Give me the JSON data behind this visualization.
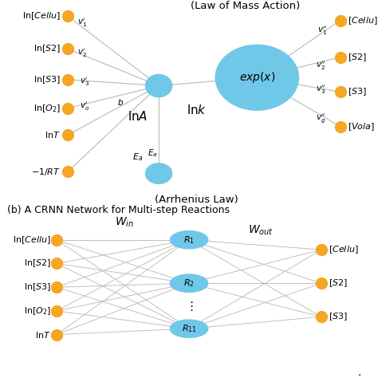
{
  "title_top": "(Law of Mass Action)",
  "title_bottom_a": "(Arrhenius Law)",
  "title_b": "(b) A CRNN Network for Multi-step Reactions",
  "node_color_yellow": "#F5A623",
  "node_color_blue": "#70C8E8",
  "line_color": "#C0C0C0",
  "left_inputs": [
    "ln[$\\it{Cellu}$]",
    "ln[$\\it{S2}$]",
    "ln[$\\it{S3}$]",
    "ln[$\\it{O_2}$]",
    "ln$\\it{T}$",
    "$-1/RT$"
  ],
  "left_v_labels": [
    "$v_1'$",
    "$v_2'$",
    "$v_3'$",
    "$v_o'$",
    "$b$",
    "$E_a$"
  ],
  "right_outputs": [
    "[$\\it{Cellu}$]",
    "[$\\it{S2}$]",
    "[$\\it{S3}$]",
    "[$\\it{Vola}$]"
  ],
  "right_v_labels": [
    "$v_1''$",
    "$v_2''$",
    "$v_3''$",
    "$v_g''$"
  ],
  "center_label": "$exp(x)$",
  "lnA_label": "ln$A$",
  "lnk_label": "ln$k$",
  "Ea_label": "$E_a$",
  "b_left_inputs": [
    "ln[$\\it{Cellu}$]",
    "ln[$\\it{S2}$]",
    "ln[$\\it{S3}$]",
    "ln[$\\it{O_2}$]",
    "ln$\\it{T}$"
  ],
  "b_right_outputs": [
    "[$\\it{Cellu}$]",
    "[$\\it{S2}$]",
    "[$\\it{S3}$]"
  ],
  "b_hidden": [
    "$R_1$",
    "$R_2$",
    "$R_{11}$"
  ],
  "Win_label": "$W_{in}$",
  "Wout_label": "$W_{out}$"
}
